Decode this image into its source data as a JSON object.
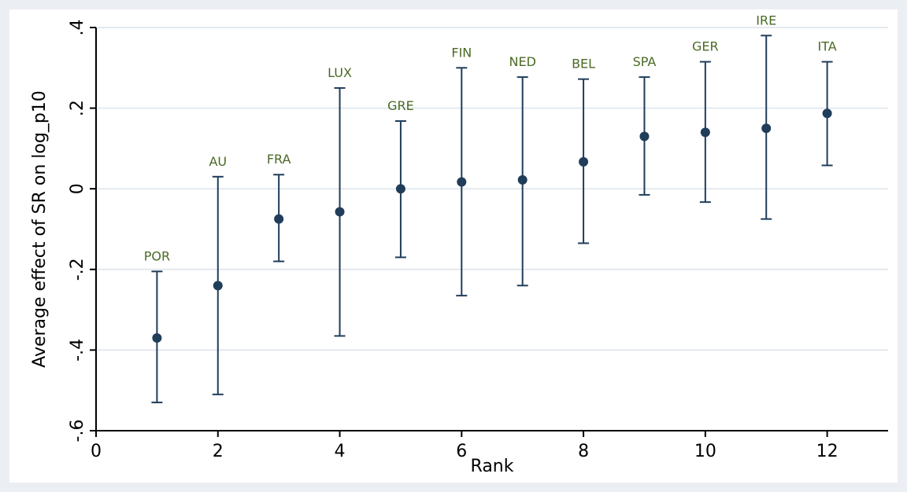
{
  "chart_data": {
    "type": "scatter",
    "xlabel": "Rank",
    "ylabel": "Average effect of SR on log_p10",
    "xlim": [
      0,
      13
    ],
    "ylim": [
      -0.6,
      0.4
    ],
    "x_ticks": [
      0,
      2,
      4,
      6,
      8,
      10,
      12
    ],
    "y_ticks": [
      -0.6,
      -0.4,
      -0.2,
      0,
      0.2,
      0.4
    ],
    "y_tick_labels": [
      "-.6",
      "-.4",
      "-.2",
      "0",
      ".2",
      ".4"
    ],
    "grid": true,
    "points": [
      {
        "label": "POR",
        "x": 1,
        "y": -0.37,
        "low": -0.53,
        "high": -0.205
      },
      {
        "label": "AU",
        "x": 2,
        "y": -0.24,
        "low": -0.51,
        "high": 0.03
      },
      {
        "label": "FRA",
        "x": 3,
        "y": -0.075,
        "low": -0.18,
        "high": 0.035
      },
      {
        "label": "LUX",
        "x": 4,
        "y": -0.057,
        "low": -0.365,
        "high": 0.25
      },
      {
        "label": "GRE",
        "x": 5,
        "y": 0.0,
        "low": -0.17,
        "high": 0.168
      },
      {
        "label": "FIN",
        "x": 6,
        "y": 0.017,
        "low": -0.265,
        "high": 0.3
      },
      {
        "label": "NED",
        "x": 7,
        "y": 0.022,
        "low": -0.24,
        "high": 0.277
      },
      {
        "label": "BEL",
        "x": 8,
        "y": 0.067,
        "low": -0.135,
        "high": 0.272
      },
      {
        "label": "SPA",
        "x": 9,
        "y": 0.13,
        "low": -0.015,
        "high": 0.277
      },
      {
        "label": "GER",
        "x": 10,
        "y": 0.14,
        "low": -0.033,
        "high": 0.315
      },
      {
        "label": "IRE",
        "x": 11,
        "y": 0.15,
        "low": -0.075,
        "high": 0.38
      },
      {
        "label": "ITA",
        "x": 12,
        "y": 0.187,
        "low": 0.058,
        "high": 0.315
      }
    ],
    "colors": {
      "series": "#203d5a",
      "label": "#4a6a24",
      "grid": "#e3e9ef",
      "plot_background": "#ffffff",
      "outer_background": "#ebeff3"
    }
  }
}
